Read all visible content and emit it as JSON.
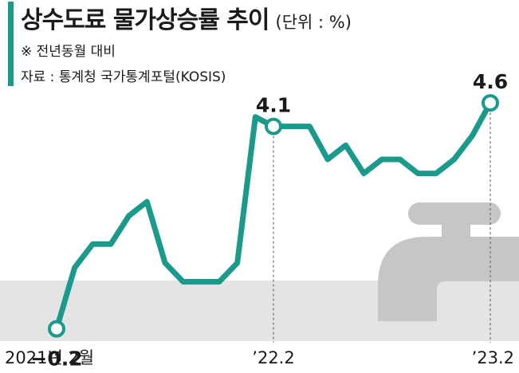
{
  "header": {
    "title": "상수도료 물가상승률 추이",
    "unit": "(단위 : %)",
    "note": "※ 전년동월 대비",
    "source": "자료 : 통계청 국가통계포털(KOSIS)"
  },
  "colors": {
    "accent": "#1a9a8b",
    "line": "#1a9a8b",
    "baseline_band": "#e4e4e4",
    "faucet": "#c6c6c6",
    "guide": "#555555",
    "text": "#1a1a1a"
  },
  "decoration": {
    "icon": "faucet-icon"
  },
  "chart_data": {
    "type": "line",
    "title": "상수도료 물가상승률 추이",
    "ylabel": "",
    "xlabel": "",
    "ylim": [
      -0.8,
      5.6
    ],
    "grid": false,
    "x": [
      "2021-02",
      "2021-03",
      "2021-04",
      "2021-05",
      "2021-06",
      "2021-07",
      "2021-08",
      "2021-09",
      "2021-10",
      "2021-11",
      "2021-12",
      "2022-01",
      "2022-02",
      "2022-03",
      "2022-04",
      "2022-05",
      "2022-06",
      "2022-07",
      "2022-08",
      "2022-09",
      "2022-10",
      "2022-11",
      "2022-12",
      "2023-01",
      "2023-02"
    ],
    "values": [
      -0.2,
      1.1,
      1.6,
      1.6,
      2.2,
      2.5,
      1.2,
      0.8,
      0.8,
      0.8,
      1.2,
      4.3,
      4.1,
      4.1,
      4.1,
      3.4,
      3.7,
      3.1,
      3.4,
      3.4,
      3.1,
      3.1,
      3.4,
      3.9,
      4.6
    ],
    "tick_labels": [
      {
        "index": 0,
        "label": "2021년 2월"
      },
      {
        "index": 12,
        "label": "’22.2"
      },
      {
        "index": 24,
        "label": "’23.2"
      }
    ],
    "point_labels": [
      {
        "index": 0,
        "label": "−0.2",
        "position": "below"
      },
      {
        "index": 12,
        "label": "4.1",
        "position": "above"
      },
      {
        "index": 24,
        "label": "4.6",
        "position": "above"
      }
    ]
  }
}
